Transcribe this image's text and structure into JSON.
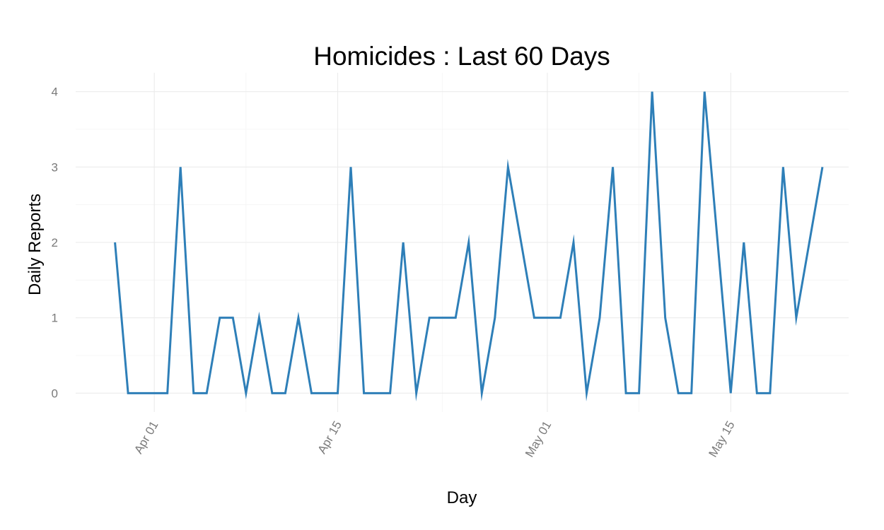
{
  "chart_data": {
    "type": "line",
    "title": "Homicides : Last 60 Days",
    "xlabel": "Day",
    "ylabel": "Daily Reports",
    "x_start": "2024-03-29",
    "x_end": "2024-05-22",
    "xlim": [
      "2024-03-26",
      "2024-05-24"
    ],
    "ylim": [
      -0.25,
      4.25
    ],
    "y_ticks": [
      0,
      1,
      2,
      3,
      4
    ],
    "x_ticks": [
      {
        "date": "2024-04-01",
        "label": "Apr 01"
      },
      {
        "date": "2024-04-15",
        "label": "Apr 15"
      },
      {
        "date": "2024-05-01",
        "label": "May 01"
      },
      {
        "date": "2024-05-15",
        "label": "May 15"
      }
    ],
    "series": [
      {
        "color": "#2e7fb8",
        "values": [
          2,
          0,
          0,
          0,
          0,
          3,
          0,
          0,
          1,
          1,
          0,
          1,
          0,
          0,
          1,
          0,
          0,
          0,
          3,
          0,
          0,
          0,
          2,
          0,
          1,
          1,
          1,
          2,
          0,
          1,
          3,
          2,
          1,
          1,
          1,
          2,
          0,
          1,
          3,
          0,
          0,
          4,
          1,
          0,
          0,
          4,
          2,
          0,
          2,
          0,
          0,
          3,
          1,
          2,
          3
        ]
      }
    ],
    "grid": true,
    "legend": "none"
  }
}
